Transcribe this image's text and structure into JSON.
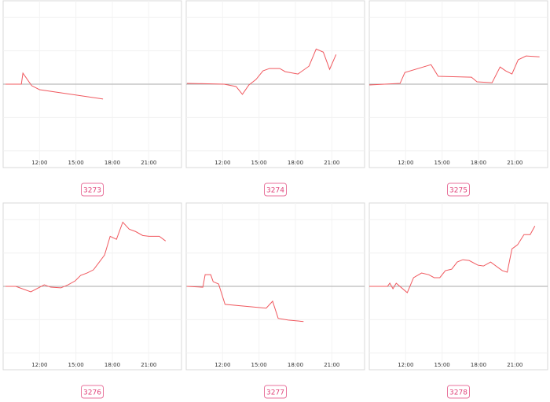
{
  "chart_data": [
    {
      "type": "line",
      "title": "3273",
      "color": "#f0585e",
      "xlim": [
        9.0,
        23.7
      ],
      "ylim": [
        -5,
        5
      ],
      "baseline": 0,
      "yticks": [
        -4,
        -2,
        0,
        2,
        4
      ],
      "grid": true,
      "xticks": [
        {
          "value": 12,
          "label": "12:00"
        },
        {
          "value": 15,
          "label": "15:00"
        },
        {
          "value": 18,
          "label": "18:00"
        },
        {
          "value": 21,
          "label": "21:00"
        }
      ],
      "x": [
        9.19,
        10.5,
        10.63,
        11.35,
        12.0,
        17.23
      ],
      "values": [
        0,
        0,
        0.66,
        -0.09,
        -0.33,
        -0.89
      ]
    },
    {
      "type": "line",
      "title": "3274",
      "color": "#f0585e",
      "xlim": [
        9.0,
        23.7
      ],
      "ylim": [
        -5,
        5
      ],
      "baseline": 0,
      "yticks": [
        -4,
        -2,
        0,
        2,
        4
      ],
      "grid": true,
      "xticks": [
        {
          "value": 12,
          "label": "12:00"
        },
        {
          "value": 15,
          "label": "15:00"
        },
        {
          "value": 18,
          "label": "18:00"
        },
        {
          "value": 21,
          "label": "21:00"
        }
      ],
      "x": [
        9.06,
        12.13,
        13.11,
        13.63,
        14.16,
        14.75,
        15.33,
        15.86,
        16.71,
        17.16,
        18.21,
        19.12,
        19.71,
        20.3,
        20.82,
        21.35
      ],
      "values": [
        0.05,
        0,
        -0.14,
        -0.61,
        -0.05,
        0.28,
        0.8,
        0.94,
        0.94,
        0.75,
        0.61,
        1.08,
        2.11,
        1.92,
        0.89,
        1.78
      ]
    },
    {
      "type": "line",
      "title": "3275",
      "color": "#f0585e",
      "xlim": [
        9.0,
        23.7
      ],
      "ylim": [
        -5,
        5
      ],
      "baseline": 0,
      "yticks": [
        -4,
        -2,
        0,
        2,
        4
      ],
      "grid": true,
      "xticks": [
        {
          "value": 12,
          "label": "12:00"
        },
        {
          "value": 15,
          "label": "15:00"
        },
        {
          "value": 18,
          "label": "18:00"
        },
        {
          "value": 21,
          "label": "21:00"
        }
      ],
      "x": [
        9.0,
        11.54,
        11.93,
        14.09,
        14.68,
        17.42,
        17.88,
        19.12,
        19.78,
        20.24,
        20.76,
        21.27,
        21.92,
        23.03
      ],
      "values": [
        -0.05,
        0.05,
        0.7,
        1.17,
        0.47,
        0.42,
        0.14,
        0.09,
        1.03,
        0.8,
        0.61,
        1.46,
        1.69,
        1.64
      ]
    },
    {
      "type": "line",
      "title": "3276",
      "color": "#f0585e",
      "xlim": [
        9.0,
        23.7
      ],
      "ylim": [
        -5,
        5
      ],
      "baseline": 0,
      "yticks": [
        -4,
        -2,
        0,
        2,
        4
      ],
      "grid": true,
      "xticks": [
        {
          "value": 12,
          "label": "12:00"
        },
        {
          "value": 15,
          "label": "15:00"
        },
        {
          "value": 18,
          "label": "18:00"
        },
        {
          "value": 21,
          "label": "21:00"
        }
      ],
      "x": [
        9.19,
        10.04,
        11.28,
        12.39,
        12.92,
        13.76,
        14.35,
        14.94,
        15.39,
        15.91,
        16.44,
        16.97,
        17.36,
        17.82,
        18.34,
        18.86,
        19.39,
        19.91,
        20.5,
        21.02,
        21.87,
        22.39
      ],
      "values": [
        0,
        0,
        -0.33,
        0.09,
        -0.05,
        -0.09,
        0.09,
        0.33,
        0.66,
        0.8,
        0.99,
        1.5,
        1.88,
        3.0,
        2.82,
        3.85,
        3.43,
        3.29,
        3.05,
        3.0,
        3.0,
        2.72
      ]
    },
    {
      "type": "line",
      "title": "3277",
      "color": "#f0585e",
      "xlim": [
        9.0,
        23.7
      ],
      "ylim": [
        -5,
        5
      ],
      "baseline": 0,
      "yticks": [
        -4,
        -2,
        0,
        2,
        4
      ],
      "grid": true,
      "xticks": [
        {
          "value": 12,
          "label": "12:00"
        },
        {
          "value": 15,
          "label": "15:00"
        },
        {
          "value": 18,
          "label": "18:00"
        },
        {
          "value": 21,
          "label": "21:00"
        }
      ],
      "x": [
        9.06,
        10.37,
        10.56,
        11.02,
        11.22,
        11.67,
        12.2,
        15.59,
        16.12,
        16.58,
        17.42,
        18.67
      ],
      "values": [
        0,
        -0.05,
        0.7,
        0.7,
        0.28,
        0.14,
        -1.08,
        -1.31,
        -0.89,
        -1.92,
        -2.02,
        -2.11
      ]
    },
    {
      "type": "line",
      "title": "3278",
      "color": "#f0585e",
      "xlim": [
        9.0,
        23.7
      ],
      "ylim": [
        -5,
        5
      ],
      "baseline": 0,
      "yticks": [
        -4,
        -2,
        0,
        2,
        4
      ],
      "grid": true,
      "xticks": [
        {
          "value": 12,
          "label": "12:00"
        },
        {
          "value": 15,
          "label": "15:00"
        },
        {
          "value": 18,
          "label": "18:00"
        },
        {
          "value": 21,
          "label": "21:00"
        }
      ],
      "x": [
        9.0,
        10.5,
        10.69,
        10.95,
        11.22,
        12.13,
        12.65,
        13.31,
        13.9,
        14.35,
        14.81,
        15.27,
        15.79,
        16.25,
        16.71,
        17.23,
        17.95,
        18.41,
        19.0,
        19.97,
        20.37,
        20.76,
        21.22,
        21.75,
        22.26,
        22.65
      ],
      "values": [
        0,
        0,
        0.19,
        -0.14,
        0.19,
        -0.38,
        0.52,
        0.8,
        0.7,
        0.52,
        0.52,
        0.94,
        1.03,
        1.46,
        1.6,
        1.55,
        1.27,
        1.22,
        1.46,
        0.94,
        0.85,
        2.25,
        2.49,
        3.1,
        3.1,
        3.62
      ]
    }
  ]
}
